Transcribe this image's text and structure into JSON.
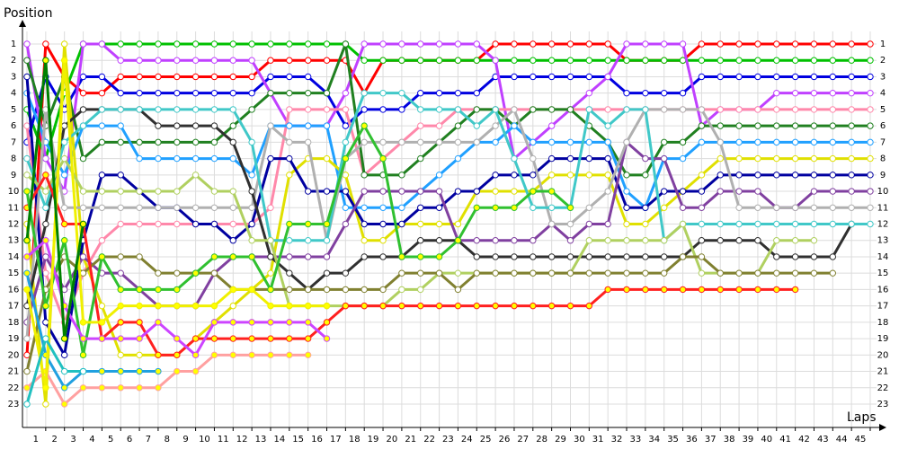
{
  "chart_data": {
    "type": "line",
    "y_label": "Position",
    "x_label": "Laps",
    "x": [
      0,
      1,
      2,
      3,
      4,
      5,
      6,
      7,
      8,
      9,
      10,
      11,
      12,
      13,
      14,
      15,
      16,
      17,
      18,
      19,
      20,
      21,
      22,
      23,
      24,
      25,
      26,
      27,
      28,
      29,
      30,
      31,
      32,
      33,
      34,
      35,
      36,
      37,
      38,
      39,
      40,
      41,
      42,
      43,
      44,
      45
    ],
    "xlim": [
      0,
      45
    ],
    "xticks": [
      1,
      2,
      3,
      4,
      5,
      6,
      7,
      8,
      9,
      10,
      11,
      12,
      13,
      14,
      15,
      16,
      17,
      18,
      19,
      20,
      21,
      22,
      23,
      24,
      25,
      26,
      27,
      28,
      29,
      30,
      31,
      32,
      33,
      34,
      35,
      36,
      37,
      38,
      39,
      40,
      41,
      42,
      43,
      44,
      45
    ],
    "ylim": [
      1,
      23
    ],
    "y_inverted": true,
    "yticks": [
      1,
      2,
      3,
      4,
      5,
      6,
      7,
      8,
      9,
      10,
      11,
      12,
      13,
      14,
      15,
      16,
      17,
      18,
      19,
      20,
      21,
      22,
      23
    ],
    "grid": true,
    "series": [
      {
        "color": "#ff0000",
        "marker_fill": "#ffffff",
        "values": [
          20,
          1,
          3,
          4,
          4,
          3,
          3,
          3,
          3,
          3,
          3,
          3,
          3,
          2,
          2,
          2,
          2,
          2,
          4,
          2,
          2,
          2,
          2,
          2,
          2,
          1,
          1,
          1,
          1,
          1,
          1,
          1,
          2,
          2,
          2,
          2,
          1,
          1,
          1,
          1,
          1,
          1,
          1,
          1,
          1,
          1
        ]
      },
      {
        "color": "#00c000",
        "marker_fill": "#ffffff",
        "values": [
          5,
          8,
          4,
          1,
          1,
          1,
          1,
          1,
          1,
          1,
          1,
          1,
          1,
          1,
          1,
          1,
          1,
          1,
          2,
          2,
          2,
          2,
          2,
          2,
          2,
          2,
          2,
          2,
          2,
          2,
          2,
          2,
          2,
          2,
          2,
          2,
          2,
          2,
          2,
          2,
          2,
          2,
          2,
          2,
          2,
          2
        ]
      },
      {
        "color": "#0000e0",
        "marker_fill": "#ffffff",
        "values": [
          7,
          3,
          5,
          3,
          3,
          4,
          4,
          4,
          4,
          4,
          4,
          4,
          4,
          3,
          3,
          3,
          4,
          6,
          5,
          5,
          5,
          4,
          4,
          4,
          4,
          3,
          3,
          3,
          3,
          3,
          3,
          3,
          4,
          4,
          4,
          4,
          3,
          3,
          3,
          3,
          3,
          3,
          3,
          3,
          3,
          3
        ]
      },
      {
        "color": "#c040ff",
        "marker_fill": "#ffffff",
        "values": [
          1,
          8,
          10,
          1,
          1,
          2,
          2,
          2,
          2,
          2,
          2,
          2,
          2,
          4,
          6,
          6,
          6,
          4,
          1,
          1,
          1,
          1,
          1,
          1,
          1,
          2,
          8,
          7,
          6,
          5,
          4,
          3,
          1,
          1,
          1,
          1,
          6,
          5,
          5,
          5,
          4,
          4,
          4,
          4,
          4,
          4
        ]
      },
      {
        "color": "#ff88aa",
        "marker_fill": "#ffffff",
        "values": [
          6,
          15,
          18,
          15,
          13,
          12,
          12,
          12,
          12,
          12,
          12,
          12,
          12,
          11,
          5,
          5,
          5,
          5,
          9,
          8,
          7,
          6,
          6,
          5,
          5,
          5,
          5,
          5,
          5,
          5,
          5,
          5,
          5,
          5,
          5,
          5,
          5,
          5,
          5,
          5,
          5,
          5,
          5,
          5,
          5,
          5
        ]
      },
      {
        "color": "#208020",
        "marker_fill": "#ffffff",
        "values": [
          2,
          6,
          3,
          8,
          7,
          7,
          7,
          7,
          7,
          7,
          7,
          6,
          5,
          4,
          4,
          4,
          4,
          1,
          9,
          9,
          9,
          8,
          7,
          6,
          5,
          5,
          6,
          5,
          5,
          5,
          6,
          7,
          9,
          9,
          7,
          7,
          6,
          6,
          6,
          6,
          6,
          6,
          6,
          6,
          6,
          6
        ]
      },
      {
        "color": "#20a0ff",
        "marker_fill": "#ffffff",
        "values": [
          4,
          7,
          9,
          6,
          6,
          6,
          8,
          8,
          8,
          8,
          8,
          8,
          9,
          6,
          6,
          6,
          6,
          11,
          11,
          11,
          11,
          10,
          9,
          8,
          7,
          7,
          6,
          7,
          7,
          7,
          7,
          7,
          10,
          11,
          8,
          8,
          7,
          7,
          7,
          7,
          7,
          7,
          7,
          7,
          7,
          7
        ]
      },
      {
        "color": "#e0e000",
        "marker_fill": "#ffffff",
        "values": [
          12,
          23,
          1,
          14,
          17,
          20,
          20,
          20,
          20,
          19,
          18,
          17,
          16,
          15,
          9,
          8,
          8,
          9,
          13,
          13,
          12,
          12,
          12,
          12,
          10,
          10,
          10,
          10,
          9,
          9,
          9,
          9,
          12,
          12,
          11,
          10,
          9,
          8,
          8,
          8,
          8,
          8,
          8,
          8,
          8,
          8
        ]
      },
      {
        "color": "#0000a0",
        "marker_fill": "#ffffff",
        "values": [
          3,
          18,
          20,
          13,
          9,
          9,
          10,
          11,
          11,
          12,
          12,
          13,
          12,
          8,
          8,
          10,
          10,
          10,
          12,
          12,
          12,
          11,
          11,
          10,
          10,
          9,
          9,
          9,
          8,
          8,
          8,
          8,
          11,
          11,
          10,
          10,
          10,
          9,
          9,
          9,
          9,
          9,
          9,
          9,
          9,
          9
        ]
      },
      {
        "color": "#8040a0",
        "marker_fill": "#ffffff",
        "values": [
          18,
          14,
          16,
          14,
          15,
          15,
          16,
          17,
          17,
          17,
          15,
          14,
          14,
          14,
          14,
          14,
          14,
          12,
          10,
          10,
          10,
          10,
          10,
          13,
          13,
          13,
          13,
          13,
          12,
          13,
          12,
          12,
          7,
          8,
          8,
          11,
          11,
          10,
          10,
          10,
          11,
          11,
          10,
          10,
          10,
          10
        ]
      },
      {
        "color": "#b0b0b0",
        "marker_fill": "#ffffff",
        "values": [
          19,
          5,
          11,
          11,
          11,
          11,
          11,
          11,
          11,
          11,
          11,
          11,
          11,
          6,
          7,
          7,
          13,
          8,
          7,
          7,
          7,
          7,
          7,
          7,
          7,
          6,
          5,
          8,
          12,
          12,
          11,
          10,
          7,
          5,
          5,
          5,
          5,
          7,
          11,
          11,
          11,
          11,
          11,
          11,
          11,
          11
        ]
      },
      {
        "color": "#303030",
        "marker_fill": "#ffffff",
        "values": [
          17,
          12,
          6,
          5,
          5,
          5,
          5,
          6,
          6,
          6,
          6,
          7,
          10,
          14,
          15,
          16,
          15,
          15,
          14,
          14,
          14,
          13,
          13,
          13,
          14,
          14,
          14,
          14,
          14,
          14,
          14,
          14,
          14,
          14,
          14,
          14,
          13,
          13,
          13,
          13,
          14,
          14,
          14,
          14,
          12,
          null
        ]
      },
      {
        "color": "#40c8c8",
        "marker_fill": "#ffffff",
        "values": [
          8,
          11,
          7,
          6,
          5,
          5,
          5,
          5,
          5,
          5,
          5,
          5,
          7,
          13,
          13,
          13,
          13,
          7,
          4,
          4,
          4,
          5,
          5,
          5,
          6,
          5,
          8,
          11,
          11,
          11,
          5,
          6,
          5,
          5,
          13,
          12,
          12,
          12,
          12,
          12,
          12,
          12,
          12,
          12,
          12,
          12
        ]
      },
      {
        "color": "#b0d060",
        "marker_fill": "#ffffff",
        "values": [
          9,
          10,
          8,
          10,
          10,
          10,
          10,
          10,
          10,
          9,
          10,
          10,
          13,
          13,
          17,
          17,
          17,
          17,
          17,
          17,
          16,
          16,
          15,
          15,
          15,
          15,
          15,
          15,
          15,
          15,
          13,
          13,
          13,
          13,
          13,
          12,
          15,
          15,
          15,
          15,
          13,
          13,
          13,
          null,
          null,
          null
        ]
      },
      {
        "color": "#808030",
        "marker_fill": "#ffffff",
        "values": [
          21,
          16,
          14,
          15,
          14,
          14,
          14,
          15,
          15,
          15,
          15,
          16,
          16,
          16,
          16,
          16,
          16,
          16,
          16,
          16,
          15,
          15,
          15,
          16,
          15,
          15,
          15,
          15,
          15,
          15,
          15,
          15,
          15,
          15,
          15,
          14,
          14,
          15,
          15,
          15,
          15,
          15,
          15,
          15,
          null,
          null
        ]
      },
      {
        "color": "#ff2020",
        "marker_fill": "#ffff00",
        "values": [
          11,
          9,
          12,
          12,
          19,
          18,
          18,
          20,
          20,
          19,
          19,
          19,
          19,
          19,
          19,
          19,
          18,
          17,
          17,
          17,
          17,
          17,
          17,
          17,
          17,
          17,
          17,
          17,
          17,
          17,
          17,
          16,
          16,
          16,
          16,
          16,
          16,
          16,
          16,
          16,
          16,
          16,
          null,
          null,
          null,
          null
        ]
      },
      {
        "color": "#30c030",
        "marker_fill": "#ffff00",
        "values": [
          10,
          17,
          13,
          20,
          14,
          16,
          16,
          16,
          16,
          15,
          14,
          14,
          14,
          16,
          12,
          12,
          12,
          8,
          6,
          8,
          14,
          14,
          14,
          13,
          11,
          11,
          11,
          10,
          10,
          11,
          null,
          null,
          null,
          null,
          null,
          null,
          null,
          null,
          null,
          null,
          null,
          null,
          null,
          null,
          null,
          null
        ]
      },
      {
        "color": "#cc44ff",
        "marker_fill": "#ffff00",
        "values": [
          14,
          13,
          17,
          19,
          19,
          19,
          19,
          18,
          19,
          20,
          18,
          18,
          18,
          18,
          18,
          18,
          19,
          null,
          null,
          null,
          null,
          null,
          null,
          null,
          null,
          null,
          null,
          null,
          null,
          null,
          null,
          null,
          null,
          null,
          null,
          null,
          null,
          null,
          null,
          null,
          null,
          null,
          null,
          null,
          null,
          null
        ]
      },
      {
        "color": "#ffa0a0",
        "marker_fill": "#ffff00",
        "values": [
          22,
          21,
          23,
          22,
          22,
          22,
          22,
          22,
          21,
          21,
          20,
          20,
          20,
          20,
          20,
          20,
          null,
          null,
          null,
          null,
          null,
          null,
          null,
          null,
          null,
          null,
          null,
          null,
          null,
          null,
          null,
          null,
          null,
          null,
          null,
          null,
          null,
          null,
          null,
          null,
          null,
          null,
          null,
          null,
          null,
          null
        ]
      },
      {
        "color": "#20a0e0",
        "marker_fill": "#ffff00",
        "values": [
          15,
          20,
          22,
          21,
          21,
          21,
          21,
          21,
          null,
          null,
          null,
          null,
          null,
          null,
          null,
          null,
          null,
          null,
          null,
          null,
          null,
          null,
          null,
          null,
          null,
          null,
          null,
          null,
          null,
          null,
          null,
          null,
          null,
          null,
          null,
          null,
          null,
          null,
          null,
          null,
          null,
          null,
          null,
          null,
          null,
          null
        ]
      },
      {
        "color": "#f0f000",
        "marker_fill": "#ffff00",
        "values": [
          16,
          22,
          2,
          18,
          18,
          17,
          17,
          17,
          17,
          17,
          17,
          16,
          16,
          17,
          17,
          17,
          17,
          null,
          null,
          null,
          null,
          null,
          null,
          null,
          null,
          null,
          null,
          null,
          null,
          null,
          null,
          null,
          null,
          null,
          null,
          null,
          null,
          null,
          null,
          null,
          null,
          null,
          null,
          null,
          null,
          null
        ]
      },
      {
        "color": "#20c0c0",
        "marker_fill": "#ffffff",
        "values": [
          23,
          19,
          21,
          21,
          null,
          null,
          null,
          null,
          null,
          null,
          null,
          null,
          null,
          null,
          null,
          null,
          null,
          null,
          null,
          null,
          null,
          null,
          null,
          null,
          null,
          null,
          null,
          null,
          null,
          null,
          null,
          null,
          null,
          null,
          null,
          null,
          null,
          null,
          null,
          null,
          null,
          null,
          null,
          null,
          null,
          null
        ]
      },
      {
        "color": "#008000",
        "marker_fill": "#ffff00",
        "values": [
          13,
          2,
          19,
          12,
          null,
          null,
          null,
          null,
          null,
          null,
          null,
          null,
          null,
          null,
          null,
          null,
          null,
          null,
          null,
          null,
          null,
          null,
          null,
          null,
          null,
          null,
          null,
          null,
          null,
          null,
          null,
          null,
          null,
          null,
          null,
          null,
          null,
          null,
          null,
          null,
          null,
          null,
          null,
          null,
          null,
          null
        ]
      }
    ]
  }
}
